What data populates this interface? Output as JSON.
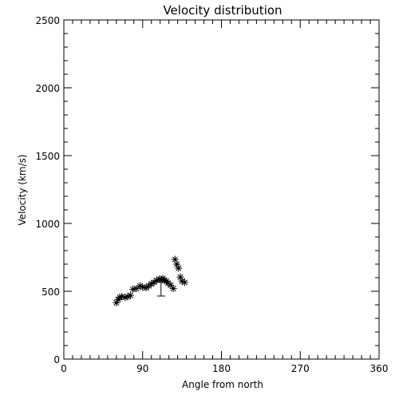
{
  "chart_data": {
    "type": "scatter",
    "title": "Velocity distribution",
    "xlabel": "Angle from north",
    "ylabel": "Velocity (km/s)",
    "xlim": [
      0,
      360
    ],
    "ylim": [
      0,
      2500
    ],
    "x_ticks": [
      0,
      90,
      180,
      270,
      360
    ],
    "y_ticks": [
      0,
      500,
      1000,
      1500,
      2000,
      2500
    ],
    "x_minor_step": 10,
    "y_minor_step": 100,
    "grid": false,
    "marker": "asterisk",
    "points": [
      {
        "x": 60,
        "y": 415
      },
      {
        "x": 62,
        "y": 440
      },
      {
        "x": 64,
        "y": 455
      },
      {
        "x": 66,
        "y": 460
      },
      {
        "x": 70,
        "y": 455
      },
      {
        "x": 73,
        "y": 460
      },
      {
        "x": 76,
        "y": 470
      },
      {
        "x": 79,
        "y": 515
      },
      {
        "x": 83,
        "y": 520
      },
      {
        "x": 87,
        "y": 540
      },
      {
        "x": 90,
        "y": 530
      },
      {
        "x": 94,
        "y": 525
      },
      {
        "x": 97,
        "y": 540
      },
      {
        "x": 100,
        "y": 555
      },
      {
        "x": 103,
        "y": 565
      },
      {
        "x": 106,
        "y": 580
      },
      {
        "x": 109,
        "y": 590
      },
      {
        "x": 111,
        "y": 585
      },
      {
        "x": 113,
        "y": 595
      },
      {
        "x": 115,
        "y": 580
      },
      {
        "x": 117,
        "y": 575
      },
      {
        "x": 119,
        "y": 560
      },
      {
        "x": 122,
        "y": 545
      },
      {
        "x": 125,
        "y": 520
      },
      {
        "x": 127,
        "y": 735
      },
      {
        "x": 129,
        "y": 700
      },
      {
        "x": 131,
        "y": 670
      },
      {
        "x": 133,
        "y": 605
      },
      {
        "x": 135,
        "y": 575
      },
      {
        "x": 138,
        "y": 565
      }
    ],
    "error_bar": {
      "x": 111,
      "y": 535,
      "low": 465,
      "high": 570
    }
  }
}
